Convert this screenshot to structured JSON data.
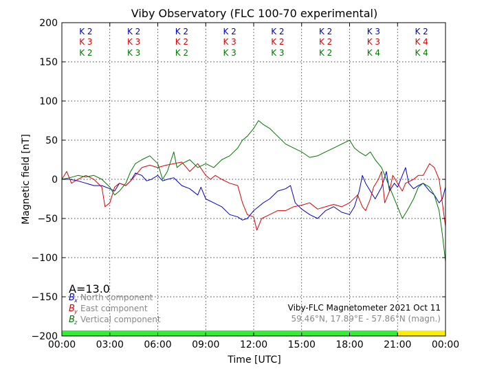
{
  "chart_data": {
    "type": "line",
    "title": "Viby Observatory (FLC 100-70 experimental)",
    "xlabel": "Time [UTC]",
    "ylabel": "Magnetic field [nT]",
    "xlim": [
      0,
      24
    ],
    "ylim": [
      -200,
      200
    ],
    "x_ticks": [
      "00:00",
      "03:00",
      "06:00",
      "09:00",
      "12:00",
      "15:00",
      "18:00",
      "21:00",
      "00:00"
    ],
    "y_ticks": [
      200,
      150,
      100,
      50,
      0,
      -50,
      -100,
      -150,
      -200
    ],
    "grid": true,
    "k_indices": {
      "north": [
        "K 2",
        "K 2",
        "K 2",
        "K 2",
        "K 2",
        "K 2",
        "K 3",
        "K 2"
      ],
      "east": [
        "K 3",
        "K 3",
        "K 2",
        "K 3",
        "K 2",
        "K 2",
        "K 3",
        "K 4"
      ],
      "vertical": [
        "K 2",
        "K 3",
        "K 2",
        "K 3",
        "K 3",
        "K 2",
        "K 4",
        "K 4"
      ]
    },
    "a_index": "A=13.0",
    "legend": {
      "placement": "lower-left",
      "entries": [
        {
          "symbol": "B",
          "sub": "x",
          "label": "North component",
          "color": "#0000cc"
        },
        {
          "symbol": "B",
          "sub": "y",
          "label": "East component",
          "color": "#dd0000"
        },
        {
          "symbol": "B",
          "sub": "z",
          "label": "Vertical component",
          "color": "#007700"
        }
      ]
    },
    "info_line1": "Viby-FLC Magnetometer 2021 Oct 11",
    "info_line2": "59.46°N, 17.89°E - 57.86°N (magn.)",
    "status_bar": [
      {
        "from": 0,
        "to": 21,
        "color": "#33ee33"
      },
      {
        "from": 21,
        "to": 24,
        "color": "#ffee00"
      }
    ],
    "series": [
      {
        "name": "North component",
        "color": "#0000cc",
        "points": [
          [
            0,
            0
          ],
          [
            0.5,
            0
          ],
          [
            1,
            -2
          ],
          [
            1.5,
            -5
          ],
          [
            2,
            -8
          ],
          [
            2.5,
            -8
          ],
          [
            3,
            -12
          ],
          [
            3.3,
            -15
          ],
          [
            3.6,
            -5
          ],
          [
            4,
            -8
          ],
          [
            4.3,
            -2
          ],
          [
            4.6,
            8
          ],
          [
            5,
            5
          ],
          [
            5.3,
            -2
          ],
          [
            5.6,
            0
          ],
          [
            6,
            5
          ],
          [
            6.3,
            -2
          ],
          [
            6.6,
            0
          ],
          [
            7,
            2
          ],
          [
            7.5,
            -8
          ],
          [
            8,
            -12
          ],
          [
            8.5,
            -20
          ],
          [
            8.7,
            -10
          ],
          [
            9,
            -25
          ],
          [
            9.5,
            -30
          ],
          [
            10,
            -35
          ],
          [
            10.5,
            -45
          ],
          [
            11,
            -48
          ],
          [
            11.3,
            -52
          ],
          [
            11.6,
            -50
          ],
          [
            12,
            -40
          ],
          [
            12.3,
            -35
          ],
          [
            12.6,
            -30
          ],
          [
            13,
            -25
          ],
          [
            13.5,
            -15
          ],
          [
            14,
            -12
          ],
          [
            14.3,
            -8
          ],
          [
            14.6,
            -30
          ],
          [
            15,
            -38
          ],
          [
            15.5,
            -45
          ],
          [
            16,
            -50
          ],
          [
            16.5,
            -40
          ],
          [
            17,
            -35
          ],
          [
            17.5,
            -42
          ],
          [
            18,
            -45
          ],
          [
            18.3,
            -35
          ],
          [
            18.6,
            -15
          ],
          [
            18.8,
            5
          ],
          [
            19,
            -5
          ],
          [
            19.3,
            -15
          ],
          [
            19.6,
            -25
          ],
          [
            20,
            -10
          ],
          [
            20.3,
            10
          ],
          [
            20.5,
            -15
          ],
          [
            20.8,
            -5
          ],
          [
            21,
            -10
          ],
          [
            21.3,
            5
          ],
          [
            21.5,
            15
          ],
          [
            21.7,
            -5
          ],
          [
            22,
            -12
          ],
          [
            22.3,
            -8
          ],
          [
            22.6,
            -5
          ],
          [
            23,
            -15
          ],
          [
            23.3,
            -20
          ],
          [
            23.6,
            -30
          ],
          [
            23.8,
            -25
          ],
          [
            24,
            -10
          ]
        ]
      },
      {
        "name": "East component",
        "color": "#dd0000",
        "points": [
          [
            0,
            0
          ],
          [
            0.3,
            10
          ],
          [
            0.6,
            -5
          ],
          [
            1,
            0
          ],
          [
            1.5,
            5
          ],
          [
            2,
            0
          ],
          [
            2.5,
            -10
          ],
          [
            2.7,
            -35
          ],
          [
            3,
            -30
          ],
          [
            3.3,
            -10
          ],
          [
            3.6,
            -5
          ],
          [
            4,
            -8
          ],
          [
            4.3,
            -2
          ],
          [
            4.6,
            5
          ],
          [
            5,
            15
          ],
          [
            5.5,
            18
          ],
          [
            6,
            15
          ],
          [
            6.5,
            18
          ],
          [
            7,
            20
          ],
          [
            7.5,
            22
          ],
          [
            8,
            10
          ],
          [
            8.5,
            20
          ],
          [
            9,
            5
          ],
          [
            9.3,
            0
          ],
          [
            9.6,
            5
          ],
          [
            10,
            0
          ],
          [
            10.5,
            -5
          ],
          [
            11,
            -8
          ],
          [
            11.3,
            -30
          ],
          [
            11.6,
            -45
          ],
          [
            12,
            -48
          ],
          [
            12.2,
            -65
          ],
          [
            12.5,
            -50
          ],
          [
            13,
            -45
          ],
          [
            13.5,
            -40
          ],
          [
            14,
            -40
          ],
          [
            14.5,
            -35
          ],
          [
            15,
            -33
          ],
          [
            15.5,
            -30
          ],
          [
            16,
            -38
          ],
          [
            16.5,
            -35
          ],
          [
            17,
            -32
          ],
          [
            17.5,
            -35
          ],
          [
            18,
            -30
          ],
          [
            18.5,
            -20
          ],
          [
            18.8,
            -35
          ],
          [
            19,
            -40
          ],
          [
            19.3,
            -25
          ],
          [
            19.5,
            -10
          ],
          [
            19.8,
            0
          ],
          [
            20,
            10
          ],
          [
            20.2,
            -30
          ],
          [
            20.5,
            -15
          ],
          [
            20.7,
            5
          ],
          [
            21,
            -5
          ],
          [
            21.3,
            -15
          ],
          [
            21.5,
            -5
          ],
          [
            22,
            0
          ],
          [
            22.3,
            5
          ],
          [
            22.6,
            5
          ],
          [
            23,
            20
          ],
          [
            23.3,
            15
          ],
          [
            23.6,
            0
          ],
          [
            23.8,
            -30
          ],
          [
            24,
            -60
          ]
        ]
      },
      {
        "name": "Vertical component",
        "color": "#007700",
        "points": [
          [
            0,
            0
          ],
          [
            0.5,
            2
          ],
          [
            1,
            5
          ],
          [
            1.5,
            3
          ],
          [
            2,
            5
          ],
          [
            2.5,
            0
          ],
          [
            3,
            -10
          ],
          [
            3.3,
            -20
          ],
          [
            3.6,
            -15
          ],
          [
            4,
            -5
          ],
          [
            4.3,
            10
          ],
          [
            4.6,
            20
          ],
          [
            5,
            25
          ],
          [
            5.5,
            30
          ],
          [
            6,
            20
          ],
          [
            6.3,
            0
          ],
          [
            6.6,
            10
          ],
          [
            7,
            35
          ],
          [
            7.2,
            15
          ],
          [
            7.5,
            20
          ],
          [
            8,
            25
          ],
          [
            8.5,
            15
          ],
          [
            9,
            20
          ],
          [
            9.5,
            15
          ],
          [
            10,
            25
          ],
          [
            10.5,
            30
          ],
          [
            11,
            40
          ],
          [
            11.3,
            50
          ],
          [
            11.6,
            55
          ],
          [
            12,
            65
          ],
          [
            12.3,
            75
          ],
          [
            12.6,
            70
          ],
          [
            13,
            65
          ],
          [
            13.5,
            55
          ],
          [
            14,
            45
          ],
          [
            14.5,
            40
          ],
          [
            15,
            35
          ],
          [
            15.5,
            28
          ],
          [
            16,
            30
          ],
          [
            16.5,
            35
          ],
          [
            17,
            40
          ],
          [
            17.5,
            45
          ],
          [
            18,
            50
          ],
          [
            18.3,
            40
          ],
          [
            18.6,
            35
          ],
          [
            19,
            30
          ],
          [
            19.3,
            35
          ],
          [
            19.6,
            25
          ],
          [
            20,
            15
          ],
          [
            20.3,
            0
          ],
          [
            20.6,
            -15
          ],
          [
            21,
            -35
          ],
          [
            21.3,
            -50
          ],
          [
            21.6,
            -40
          ],
          [
            22,
            -25
          ],
          [
            22.3,
            -10
          ],
          [
            22.6,
            -5
          ],
          [
            23,
            -10
          ],
          [
            23.3,
            -20
          ],
          [
            23.6,
            -40
          ],
          [
            23.8,
            -70
          ],
          [
            24,
            -105
          ]
        ]
      }
    ]
  }
}
